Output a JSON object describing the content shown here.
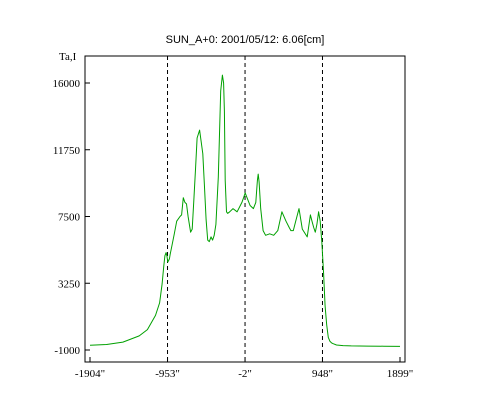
{
  "chart_data": {
    "type": "line",
    "title": "SUN_A+0: 2001/05/12: 6.06[cm]",
    "ylabel": "Ta,I",
    "xlabel": "",
    "xlim": [
      -1904,
      1899
    ],
    "ylim": [
      -1000,
      17000
    ],
    "yticks": [
      {
        "value": 16000,
        "label": "16000"
      },
      {
        "value": 11750,
        "label": "11750"
      },
      {
        "value": 7500,
        "label": "7500"
      },
      {
        "value": 3250,
        "label": "3250"
      },
      {
        "value": -1000,
        "label": "-1000"
      }
    ],
    "xticks": [
      {
        "value": -1904,
        "label": "-1904\""
      },
      {
        "value": -953,
        "label": "-953\""
      },
      {
        "value": -2,
        "label": "-2\""
      },
      {
        "value": 948,
        "label": "948\""
      },
      {
        "value": 1899,
        "label": "1899\""
      }
    ],
    "vlines": [
      -953,
      -2,
      948
    ],
    "grid": false,
    "series": [
      {
        "color": "#00a000",
        "x": [
          -1904,
          -1700,
          -1500,
          -1300,
          -1200,
          -1100,
          -1050,
          -1020,
          -1000,
          -985,
          -970,
          -960,
          -950,
          -940,
          -930,
          -920,
          -900,
          -870,
          -840,
          -800,
          -780,
          -760,
          -740,
          -720,
          -700,
          -670,
          -650,
          -630,
          -610,
          -590,
          -560,
          -520,
          -500,
          -480,
          -460,
          -440,
          -420,
          -400,
          -380,
          -360,
          -330,
          -300,
          -280,
          -265,
          -255,
          -245,
          -230,
          -215,
          -190,
          -150,
          -100,
          -70,
          -40,
          -20,
          0,
          30,
          60,
          100,
          130,
          150,
          160,
          170,
          190,
          220,
          250,
          300,
          350,
          400,
          450,
          500,
          540,
          560,
          590,
          620,
          660,
          700,
          760,
          800,
          820,
          840,
          860,
          880,
          900,
          920,
          940,
          960,
          980,
          1000,
          1020,
          1040,
          1060,
          1080,
          1120,
          1200,
          1300,
          1500,
          1700,
          1899
        ],
        "values": [
          -700,
          -650,
          -500,
          -100,
          300,
          1200,
          2000,
          3200,
          4300,
          5000,
          5200,
          5000,
          4600,
          4700,
          4800,
          5100,
          5600,
          6400,
          7200,
          7500,
          7600,
          8700,
          8400,
          8300,
          7500,
          6500,
          6700,
          8500,
          10500,
          12500,
          13000,
          11500,
          9500,
          7300,
          6000,
          5900,
          6200,
          6000,
          6300,
          7000,
          10000,
          15500,
          16500,
          16000,
          14200,
          9800,
          7800,
          7700,
          7800,
          8000,
          7800,
          8100,
          8400,
          8700,
          9000,
          8600,
          8200,
          8000,
          8400,
          9800,
          10200,
          9700,
          8000,
          6600,
          6300,
          6400,
          6300,
          6600,
          7800,
          7200,
          6800,
          6600,
          6600,
          7200,
          8000,
          6700,
          6200,
          7600,
          7200,
          6800,
          6500,
          7000,
          7800,
          7200,
          5900,
          4000,
          1800,
          600,
          -200,
          -450,
          -550,
          -600,
          -680,
          -720,
          -740,
          -750,
          -760,
          -770
        ]
      }
    ]
  }
}
